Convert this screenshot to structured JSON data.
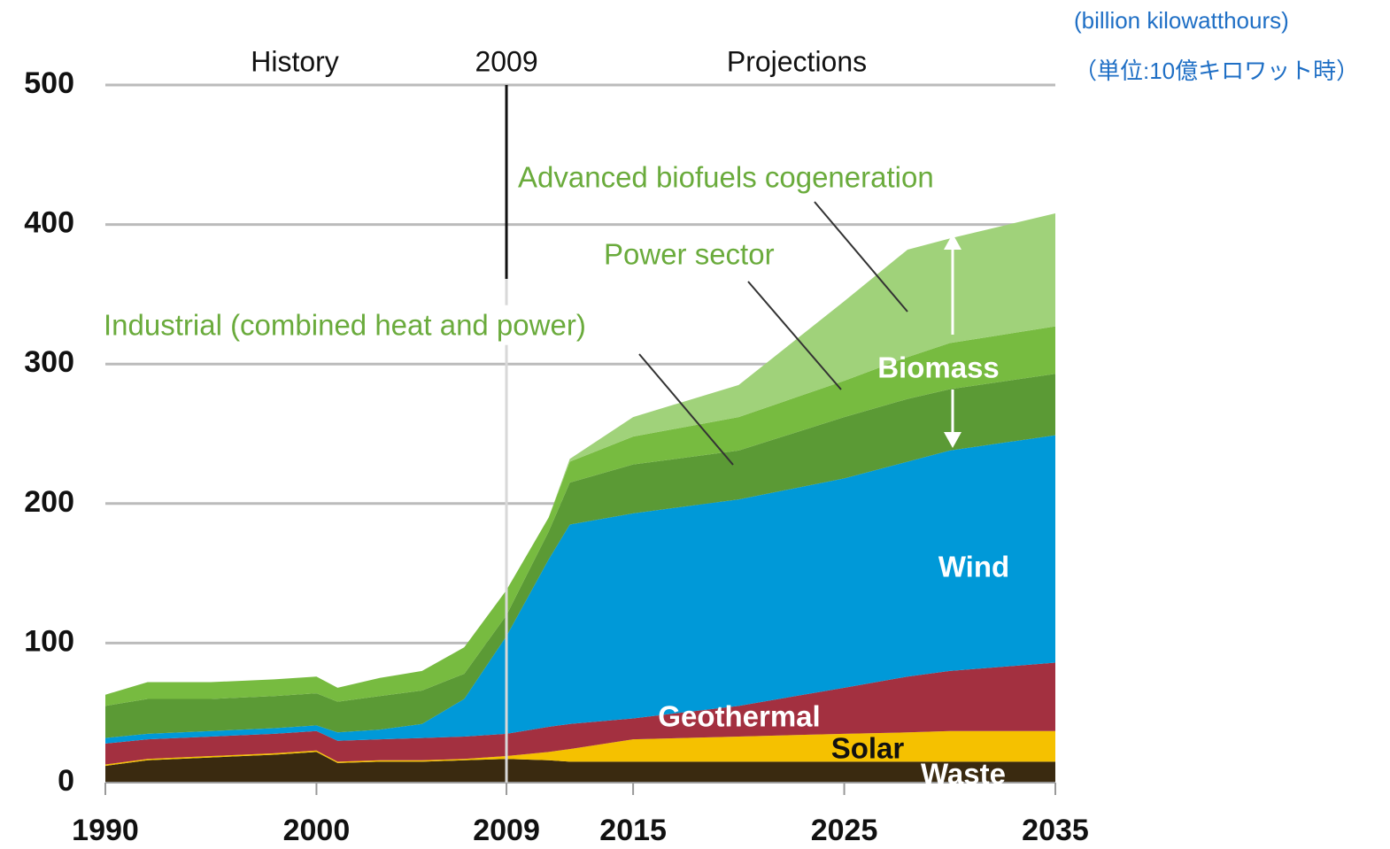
{
  "chart_data": {
    "type": "stacked_area",
    "units": [
      "(billion kilowatthours)",
      "（単位:10億キロワット時）"
    ],
    "period_labels": [
      "History",
      "Projections"
    ],
    "divider_year": 2009,
    "group_label": "Biomass",
    "x": [
      1990,
      1992,
      1995,
      1998,
      2000,
      2001,
      2003,
      2005,
      2007,
      2009,
      2011,
      2012,
      2015,
      2020,
      2025,
      2028,
      2030,
      2035
    ],
    "xlim": [
      1990,
      2035
    ],
    "xticks": [
      1990,
      2000,
      2009,
      2015,
      2025,
      2035
    ],
    "ylim": [
      0,
      500
    ],
    "yticks": [
      0,
      100,
      200,
      300,
      400,
      500
    ],
    "grid": true,
    "series": [
      {
        "name": "Waste",
        "color": "#3a2a10",
        "values": [
          12,
          16,
          18,
          20,
          22,
          14,
          15,
          15,
          16,
          17,
          16,
          15,
          15,
          15,
          15,
          15,
          15,
          15
        ]
      },
      {
        "name": "Solar",
        "color": "#f5c100",
        "values": [
          1,
          1,
          1,
          1,
          1,
          1,
          1,
          1,
          1,
          2,
          6,
          9,
          16,
          18,
          20,
          21,
          22,
          22
        ]
      },
      {
        "name": "Geothermal",
        "color": "#a33040",
        "values": [
          15,
          14,
          14,
          14,
          14,
          15,
          15,
          16,
          16,
          16,
          18,
          18,
          15,
          22,
          33,
          40,
          43,
          49
        ]
      },
      {
        "name": "Wind",
        "color": "#0099d8",
        "values": [
          4,
          4,
          4,
          4,
          4,
          6,
          7,
          10,
          27,
          70,
          120,
          143,
          147,
          148,
          150,
          154,
          158,
          163
        ]
      },
      {
        "name": "Industrial (combined heat and power)",
        "color": "#5b9a35",
        "values": [
          23,
          25,
          23,
          23,
          23,
          22,
          24,
          24,
          18,
          15,
          20,
          30,
          35,
          35,
          44,
          45,
          44,
          44
        ]
      },
      {
        "name": "Power sector",
        "color": "#77bb40",
        "values": [
          8,
          12,
          12,
          12,
          12,
          10,
          13,
          14,
          19,
          18,
          10,
          15,
          20,
          24,
          26,
          30,
          33,
          34
        ]
      },
      {
        "name": "Advanced biofuels cogeneration",
        "color": "#a0d27a",
        "values": [
          0,
          0,
          0,
          0,
          0,
          0,
          0,
          0,
          0,
          0,
          0,
          2,
          14,
          23,
          57,
          77,
          75,
          81
        ]
      }
    ]
  }
}
